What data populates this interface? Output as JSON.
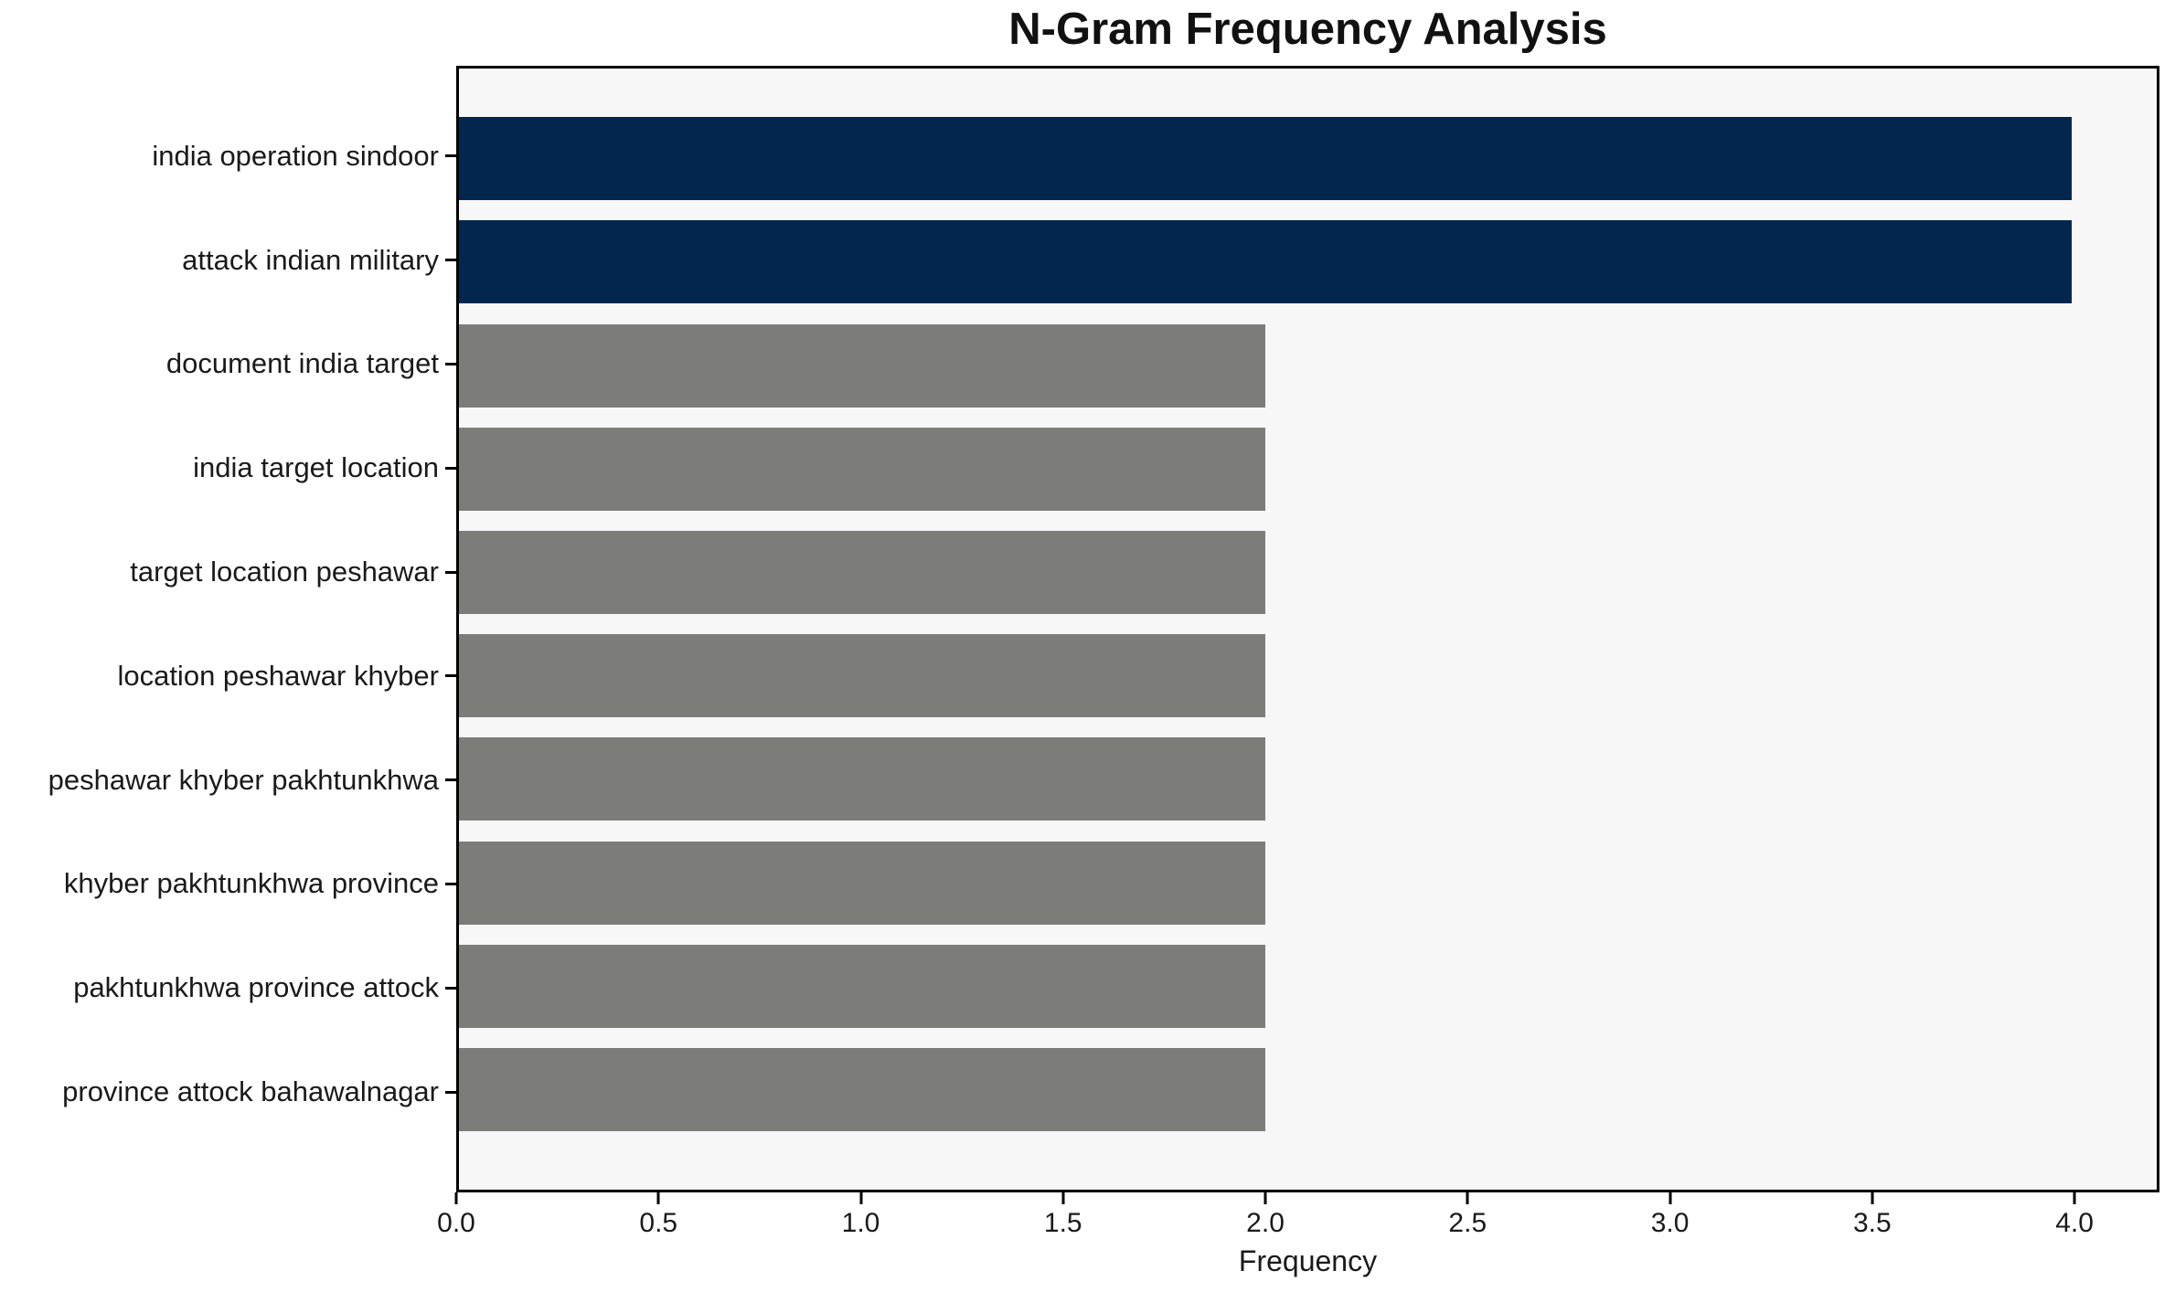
{
  "chart_data": {
    "type": "bar",
    "orientation": "horizontal",
    "title": "N-Gram Frequency Analysis",
    "xlabel": "Frequency",
    "ylabel": "",
    "categories": [
      "india operation sindoor",
      "attack indian military",
      "document india target",
      "india target location",
      "target location peshawar",
      "location peshawar khyber",
      "peshawar khyber pakhtunkhwa",
      "khyber pakhtunkhwa province",
      "pakhtunkhwa province attock",
      "province attock bahawalnagar"
    ],
    "values": [
      4,
      4,
      2,
      2,
      2,
      2,
      2,
      2,
      2,
      2
    ],
    "bar_colors": [
      "#02264e",
      "#02264e",
      "#7c7c79",
      "#7c7c79",
      "#7c7c79",
      "#7c7c79",
      "#7c7c79",
      "#7c7c79",
      "#7c7c79",
      "#7c7c79"
    ],
    "xlim": [
      0,
      4.21
    ],
    "xticks": [
      0.0,
      0.5,
      1.0,
      1.5,
      2.0,
      2.5,
      3.0,
      3.5,
      4.0
    ],
    "xtick_labels": [
      "0.0",
      "0.5",
      "1.0",
      "1.5",
      "2.0",
      "2.5",
      "3.0",
      "3.5",
      "4.0"
    ],
    "grid": false,
    "legend": null,
    "plot_background": "#f7f7f7",
    "figure_background": "#ffffff",
    "spine_color": "#000000",
    "highlight_color": "#02264e",
    "normal_color": "#7c7c79"
  },
  "layout_hints": {
    "bar_relative_height": "first two bars highlighted in navy, remaining bars gray",
    "legend_position": "none"
  }
}
